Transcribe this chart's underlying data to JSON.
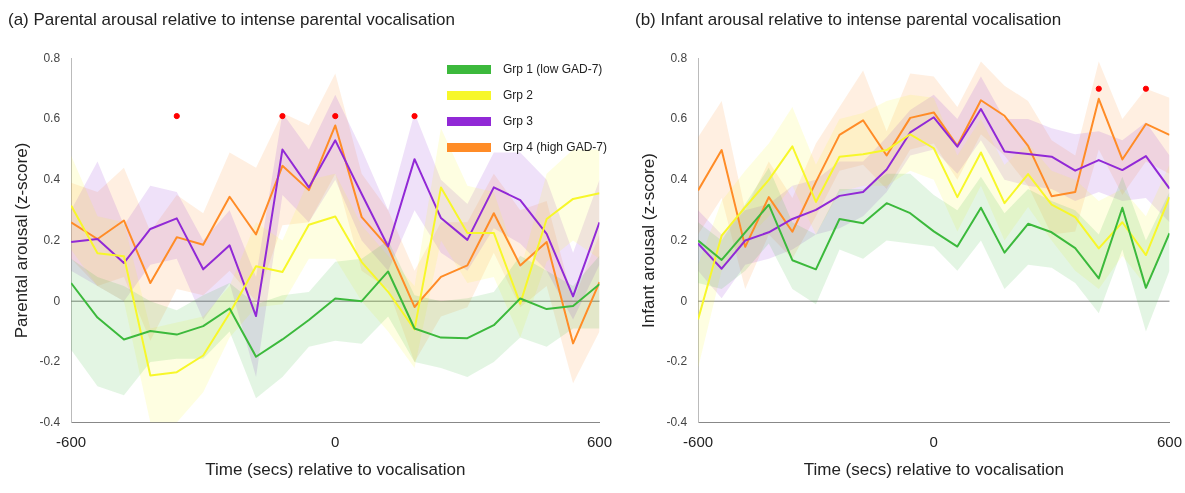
{
  "chart_data": [
    {
      "type": "line",
      "title": "(a) Parental arousal relative to intense parental vocalisation",
      "xlabel": "Time (secs) relative to vocalisation",
      "ylabel": "Parental arousal (z-score)",
      "x": [
        -600,
        -540,
        -480,
        -420,
        -360,
        -300,
        -240,
        -180,
        -120,
        -60,
        0,
        60,
        120,
        180,
        240,
        300,
        360,
        420,
        480,
        540,
        600
      ],
      "xlim": [
        -600,
        600
      ],
      "xticks": [
        -600,
        0,
        600
      ],
      "ylim": [
        -0.4,
        0.8
      ],
      "yticks": [
        -0.4,
        -0.2,
        0,
        0.2,
        0.4,
        0.6,
        0.8
      ],
      "grid": false,
      "legend": "top right",
      "marker": "none",
      "line_style": "solid",
      "ref_lines": [
        {
          "axis": "y",
          "value": 0,
          "color": "#808080"
        }
      ],
      "series": [
        {
          "name": "Grp 1 (low GAD-7)",
          "color": "#3cb93c",
          "values": [
            0.06,
            -0.054,
            -0.126,
            -0.098,
            -0.11,
            -0.082,
            -0.024,
            -0.183,
            -0.126,
            -0.062,
            0.009,
            0.0,
            0.098,
            -0.09,
            -0.12,
            -0.122,
            -0.079,
            0.009,
            -0.026,
            -0.016,
            0.056
          ],
          "lower": [
            -0.16,
            -0.28,
            -0.31,
            -0.2,
            -0.19,
            -0.19,
            -0.1,
            -0.32,
            -0.25,
            -0.15,
            -0.13,
            -0.14,
            -0.05,
            -0.2,
            -0.22,
            -0.25,
            -0.2,
            -0.12,
            -0.15,
            -0.09,
            -0.09
          ],
          "upper": [
            0.14,
            0.08,
            0.05,
            0.0,
            -0.03,
            0.02,
            0.06,
            -0.01,
            0.02,
            0.03,
            0.13,
            0.14,
            0.2,
            0.02,
            0.0,
            0.01,
            0.03,
            0.15,
            0.1,
            0.05,
            0.15
          ]
        },
        {
          "name": "Grp 2",
          "color": "#f7f72a",
          "values": [
            0.315,
            0.158,
            0.148,
            -0.245,
            -0.234,
            -0.179,
            -0.04,
            0.115,
            0.096,
            0.252,
            0.279,
            0.129,
            0.031,
            -0.093,
            0.375,
            0.225,
            0.225,
            -0.008,
            0.271,
            0.337,
            0.356
          ],
          "lower": [
            0.17,
            0.05,
            0.0,
            -0.4,
            -0.4,
            -0.3,
            -0.12,
            -0.02,
            -0.01,
            0.14,
            0.14,
            0.0,
            -0.1,
            -0.22,
            0.2,
            0.06,
            0.08,
            -0.12,
            0.13,
            0.2,
            0.14
          ],
          "upper": [
            0.48,
            0.28,
            0.26,
            -0.09,
            -0.07,
            -0.05,
            0.05,
            0.26,
            0.2,
            0.4,
            0.42,
            0.25,
            0.15,
            0.05,
            0.57,
            0.38,
            0.36,
            0.1,
            0.42,
            0.5,
            0.5
          ]
        },
        {
          "name": "Grp 3",
          "color": "#9129d6",
          "values": [
            0.195,
            0.205,
            0.126,
            0.238,
            0.273,
            0.105,
            0.184,
            -0.049,
            0.5,
            0.375,
            0.53,
            0.353,
            0.18,
            0.468,
            0.274,
            0.202,
            0.375,
            0.333,
            0.222,
            0.016,
            0.26
          ],
          "lower": [
            0.1,
            0.05,
            0.0,
            0.12,
            0.14,
            -0.06,
            0.06,
            -0.25,
            0.35,
            0.26,
            0.4,
            0.2,
            0.1,
            0.3,
            0.16,
            0.1,
            0.24,
            0.19,
            0.1,
            -0.06,
            0.12
          ],
          "upper": [
            0.3,
            0.46,
            0.25,
            0.38,
            0.36,
            0.2,
            0.3,
            0.08,
            0.62,
            0.5,
            0.68,
            0.5,
            0.3,
            0.62,
            0.4,
            0.32,
            0.49,
            0.49,
            0.4,
            0.16,
            0.4
          ]
        },
        {
          "name": "Grp 4 (high GAD-7)",
          "color": "#ff8c27",
          "values": [
            0.26,
            0.205,
            0.266,
            0.06,
            0.211,
            0.186,
            0.344,
            0.22,
            0.446,
            0.366,
            0.579,
            0.277,
            0.178,
            -0.019,
            0.08,
            0.118,
            0.29,
            0.118,
            0.195,
            -0.139,
            0.063
          ],
          "lower": [
            0.14,
            0.05,
            0.08,
            -0.13,
            0.04,
            0.02,
            0.1,
            0.0,
            0.25,
            0.26,
            0.42,
            0.1,
            0.04,
            -0.2,
            -0.05,
            -0.02,
            0.16,
            -0.02,
            0.05,
            -0.27,
            -0.1
          ],
          "upper": [
            0.39,
            0.36,
            0.44,
            0.23,
            0.35,
            0.29,
            0.49,
            0.44,
            0.62,
            0.58,
            0.75,
            0.42,
            0.3,
            0.1,
            0.26,
            0.26,
            0.42,
            0.3,
            0.33,
            0.0,
            0.22
          ]
        },
        {
          "type": "scatter",
          "color": "#ff0000",
          "marker": "circle",
          "x": [
            -360,
            -120,
            0,
            180
          ],
          "values": [
            0.61,
            0.61,
            0.61,
            0.61
          ]
        }
      ]
    },
    {
      "type": "line",
      "title": "(b) Infant arousal relative to intense parental vocalisation",
      "xlabel": "Time (secs) relative to vocalisation",
      "ylabel": "Infant arousal (z-score)",
      "x": [
        -600,
        -540,
        -480,
        -420,
        -360,
        -300,
        -240,
        -180,
        -120,
        -60,
        0,
        60,
        120,
        180,
        240,
        300,
        360,
        420,
        480,
        540,
        600
      ],
      "xlim": [
        -600,
        600
      ],
      "xticks": [
        -600,
        0,
        600
      ],
      "ylim": [
        -0.4,
        0.8
      ],
      "yticks": [
        -0.4,
        -0.2,
        0,
        0.2,
        0.4,
        0.6,
        0.8
      ],
      "grid": false,
      "marker": "none",
      "line_style": "solid",
      "ref_lines": [
        {
          "axis": "y",
          "value": 0,
          "color": "#808080"
        }
      ],
      "series": [
        {
          "color": "#3cb93c",
          "values": [
            0.2,
            0.136,
            0.227,
            0.318,
            0.135,
            0.105,
            0.271,
            0.257,
            0.323,
            0.29,
            0.23,
            0.18,
            0.308,
            0.16,
            0.255,
            0.227,
            0.175,
            0.075,
            0.308,
            0.044,
            0.224
          ],
          "lower": [
            0.06,
            0.04,
            0.1,
            0.19,
            0.04,
            -0.01,
            0.17,
            0.14,
            0.2,
            0.19,
            0.18,
            0.1,
            0.2,
            0.04,
            0.12,
            0.11,
            0.06,
            -0.04,
            0.17,
            -0.1,
            0.1
          ],
          "upper": [
            0.26,
            0.2,
            0.32,
            0.44,
            0.26,
            0.22,
            0.37,
            0.37,
            0.42,
            0.42,
            0.35,
            0.3,
            0.41,
            0.29,
            0.37,
            0.33,
            0.3,
            0.22,
            0.41,
            0.2,
            0.36
          ]
        },
        {
          "color": "#f7f72a",
          "values": [
            -0.06,
            0.216,
            0.31,
            0.4,
            0.51,
            0.327,
            0.476,
            0.484,
            0.498,
            0.55,
            0.504,
            0.343,
            0.49,
            0.323,
            0.419,
            0.318,
            0.277,
            0.174,
            0.26,
            0.152,
            0.343
          ],
          "lower": [
            -0.22,
            0.1,
            0.2,
            0.28,
            0.38,
            0.22,
            0.36,
            0.38,
            0.38,
            0.43,
            0.4,
            0.23,
            0.38,
            0.2,
            0.31,
            0.2,
            0.1,
            0.04,
            0.15,
            0.05,
            0.23
          ],
          "upper": [
            0.12,
            0.33,
            0.43,
            0.52,
            0.64,
            0.45,
            0.6,
            0.62,
            0.66,
            0.68,
            0.67,
            0.48,
            0.6,
            0.45,
            0.52,
            0.43,
            0.4,
            0.33,
            0.37,
            0.28,
            0.45
          ]
        },
        {
          "color": "#9129d6",
          "values": [
            0.19,
            0.107,
            0.2,
            0.227,
            0.271,
            0.301,
            0.347,
            0.36,
            0.434,
            0.556,
            0.606,
            0.509,
            0.633,
            0.493,
            0.485,
            0.476,
            0.43,
            0.465,
            0.432,
            0.478,
            0.371
          ],
          "lower": [
            0.1,
            0.01,
            0.12,
            0.14,
            0.17,
            0.22,
            0.24,
            0.28,
            0.36,
            0.48,
            0.5,
            0.42,
            0.53,
            0.4,
            0.38,
            0.37,
            0.33,
            0.36,
            0.33,
            0.34,
            0.26
          ],
          "upper": [
            0.3,
            0.22,
            0.3,
            0.32,
            0.38,
            0.4,
            0.46,
            0.46,
            0.54,
            0.63,
            0.68,
            0.6,
            0.74,
            0.6,
            0.6,
            0.57,
            0.55,
            0.56,
            0.53,
            0.59,
            0.48
          ]
        },
        {
          "color": "#ff8c27",
          "values": [
            0.365,
            0.498,
            0.179,
            0.343,
            0.229,
            0.393,
            0.548,
            0.596,
            0.48,
            0.604,
            0.622,
            0.512,
            0.662,
            0.611,
            0.512,
            0.346,
            0.36,
            0.667,
            0.467,
            0.584,
            0.548
          ],
          "lower": [
            0.22,
            0.34,
            0.04,
            0.22,
            0.14,
            0.28,
            0.43,
            0.45,
            0.37,
            0.5,
            0.52,
            0.4,
            0.55,
            0.48,
            0.38,
            0.22,
            0.23,
            0.5,
            0.35,
            0.46,
            0.42
          ],
          "upper": [
            0.54,
            0.66,
            0.3,
            0.46,
            0.34,
            0.52,
            0.64,
            0.76,
            0.56,
            0.75,
            0.74,
            0.64,
            0.79,
            0.71,
            0.66,
            0.53,
            0.48,
            0.79,
            0.6,
            0.7,
            0.67
          ]
        },
        {
          "type": "scatter",
          "color": "#ff0000",
          "marker": "circle",
          "x": [
            420,
            540
          ],
          "values": [
            0.7,
            0.7
          ]
        }
      ]
    }
  ]
}
